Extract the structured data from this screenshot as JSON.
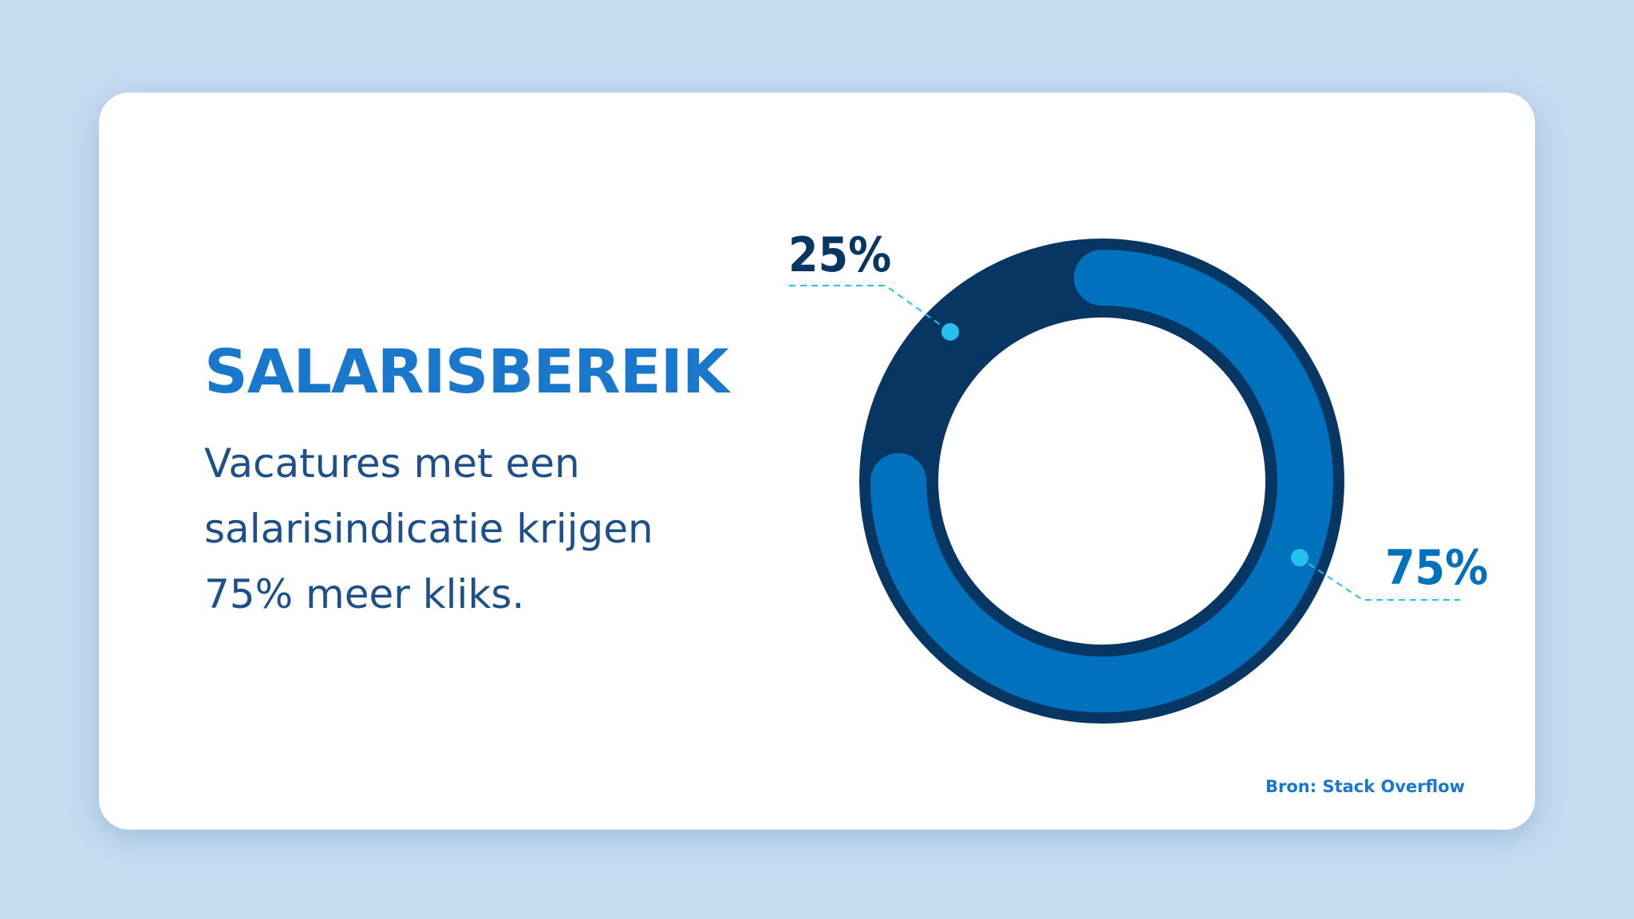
{
  "headline": "SALARISBEREIK",
  "body": "Vacatures met een salarisindicatie krijgen 75% meer kliks.",
  "source": "Bron: Stack Overflow",
  "colors": {
    "background": "#c6dcf1",
    "card": "#ffffff",
    "accent": "#1a78cc",
    "dark_navy": "#083663",
    "mid_blue": "#0071bc",
    "callout": "#26c0ef",
    "body_text": "#1d4f8a"
  },
  "chart_data": {
    "type": "pie",
    "donut": true,
    "slices": [
      {
        "label": "25%",
        "value": 25,
        "color": "#083663"
      },
      {
        "label": "75%",
        "value": 75,
        "color": "#0071bc"
      }
    ]
  }
}
